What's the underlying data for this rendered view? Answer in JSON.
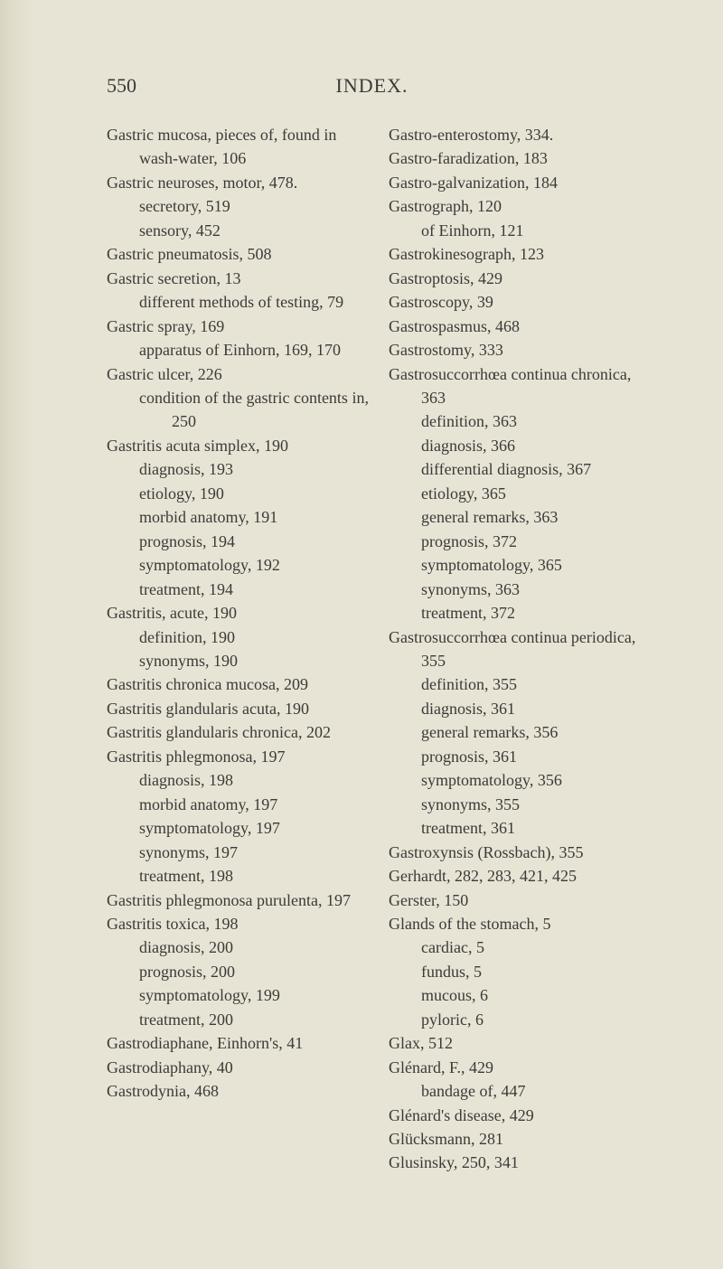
{
  "page_number": "550",
  "header_title": "INDEX.",
  "background_color": "#e8e4d5",
  "text_color": "#3a3a38",
  "font_family": "Times New Roman",
  "body_fontsize": 18,
  "header_fontsize": 22,
  "left_column": [
    {
      "cls": "hang",
      "t": "Gastric mucosa, pieces of, found in wash-water, 106"
    },
    {
      "cls": "hang",
      "t": "Gastric neuroses, motor, 478."
    },
    {
      "cls": "ind1",
      "t": "secretory, 519"
    },
    {
      "cls": "ind1",
      "t": "sensory, 452"
    },
    {
      "cls": "hang",
      "t": "Gastric pneumatosis, 508"
    },
    {
      "cls": "hang",
      "t": "Gastric secretion, 13"
    },
    {
      "cls": "hang1",
      "t": "different methods of testing, 79"
    },
    {
      "cls": "hang",
      "t": "Gastric spray, 169"
    },
    {
      "cls": "hang1",
      "t": "apparatus of Einhorn, 169, 170"
    },
    {
      "cls": "hang",
      "t": "Gastric ulcer, 226"
    },
    {
      "cls": "hang1",
      "t": "condition of the gastric contents in, 250"
    },
    {
      "cls": "hang",
      "t": "Gastritis acuta simplex, 190"
    },
    {
      "cls": "ind1",
      "t": "diagnosis, 193"
    },
    {
      "cls": "ind1",
      "t": "etiology, 190"
    },
    {
      "cls": "ind1",
      "t": "morbid anatomy, 191"
    },
    {
      "cls": "ind1",
      "t": "prognosis, 194"
    },
    {
      "cls": "ind1",
      "t": "symptomatology, 192"
    },
    {
      "cls": "ind1",
      "t": "treatment, 194"
    },
    {
      "cls": "hang",
      "t": "Gastritis, acute, 190"
    },
    {
      "cls": "ind1",
      "t": "definition, 190"
    },
    {
      "cls": "ind1",
      "t": "synonyms, 190"
    },
    {
      "cls": "hang",
      "t": "Gastritis chronica mucosa, 209"
    },
    {
      "cls": "hang",
      "t": "Gastritis glandularis acuta, 190"
    },
    {
      "cls": "hang",
      "t": "Gastritis glandularis chronica, 202"
    },
    {
      "cls": "hang",
      "t": "Gastritis phlegmonosa, 197"
    },
    {
      "cls": "ind1",
      "t": "diagnosis, 198"
    },
    {
      "cls": "ind1",
      "t": "morbid anatomy, 197"
    },
    {
      "cls": "ind1",
      "t": "symptomatology, 197"
    },
    {
      "cls": "ind1",
      "t": "synonyms, 197"
    },
    {
      "cls": "ind1",
      "t": "treatment, 198"
    },
    {
      "cls": "hang",
      "t": "Gastritis phlegmonosa purulenta, 197"
    },
    {
      "cls": "hang",
      "t": "Gastritis toxica, 198"
    },
    {
      "cls": "ind1",
      "t": "diagnosis, 200"
    },
    {
      "cls": "ind1",
      "t": "prognosis, 200"
    },
    {
      "cls": "ind1",
      "t": "symptomatology, 199"
    },
    {
      "cls": "ind1",
      "t": "treatment, 200"
    },
    {
      "cls": "hang",
      "t": "Gastrodiaphane, Einhorn's, 41"
    },
    {
      "cls": "hang",
      "t": "Gastrodiaphany, 40"
    },
    {
      "cls": "hang",
      "t": "Gastrodynia, 468"
    }
  ],
  "right_column": [
    {
      "cls": "hang",
      "t": "Gastro-enterostomy, 334."
    },
    {
      "cls": "hang",
      "t": "Gastro-faradization, 183"
    },
    {
      "cls": "hang",
      "t": "Gastro-galvanization, 184"
    },
    {
      "cls": "hang",
      "t": "Gastrograph, 120"
    },
    {
      "cls": "ind1",
      "t": "of Einhorn, 121"
    },
    {
      "cls": "hang",
      "t": "Gastrokinesograph, 123"
    },
    {
      "cls": "hang",
      "t": "Gastroptosis, 429"
    },
    {
      "cls": "hang",
      "t": "Gastroscopy, 39"
    },
    {
      "cls": "hang",
      "t": "Gastrospasmus, 468"
    },
    {
      "cls": "hang",
      "t": "Gastrostomy, 333"
    },
    {
      "cls": "hang",
      "t": "Gastrosuccorrhœa continua chronica, 363"
    },
    {
      "cls": "ind1",
      "t": "definition, 363"
    },
    {
      "cls": "ind1",
      "t": "diagnosis, 366"
    },
    {
      "cls": "ind1",
      "t": "differential diagnosis, 367"
    },
    {
      "cls": "ind1",
      "t": "etiology, 365"
    },
    {
      "cls": "ind1",
      "t": "general remarks, 363"
    },
    {
      "cls": "ind1",
      "t": "prognosis, 372"
    },
    {
      "cls": "ind1",
      "t": "symptomatology, 365"
    },
    {
      "cls": "ind1",
      "t": "synonyms, 363"
    },
    {
      "cls": "ind1",
      "t": "treatment, 372"
    },
    {
      "cls": "hang",
      "t": "Gastrosuccorrhœa continua periodica, 355"
    },
    {
      "cls": "ind1",
      "t": "definition, 355"
    },
    {
      "cls": "ind1",
      "t": "diagnosis, 361"
    },
    {
      "cls": "ind1",
      "t": "general remarks, 356"
    },
    {
      "cls": "ind1",
      "t": "prognosis, 361"
    },
    {
      "cls": "ind1",
      "t": "symptomatology, 356"
    },
    {
      "cls": "ind1",
      "t": "synonyms, 355"
    },
    {
      "cls": "ind1",
      "t": "treatment, 361"
    },
    {
      "cls": "hang",
      "t": "Gastroxynsis (Rossbach), 355"
    },
    {
      "cls": "hang",
      "t": "Gerhardt, 282, 283, 421, 425"
    },
    {
      "cls": "hang",
      "t": "Gerster, 150"
    },
    {
      "cls": "hang",
      "t": "Glands of the stomach, 5"
    },
    {
      "cls": "ind1",
      "t": "cardiac, 5"
    },
    {
      "cls": "ind1",
      "t": "fundus, 5"
    },
    {
      "cls": "ind1",
      "t": "mucous, 6"
    },
    {
      "cls": "ind1",
      "t": "pyloric, 6"
    },
    {
      "cls": "hang",
      "t": "Glax, 512"
    },
    {
      "cls": "hang",
      "t": "Glénard, F., 429"
    },
    {
      "cls": "ind1",
      "t": "bandage of, 447"
    },
    {
      "cls": "hang",
      "t": "Glénard's disease, 429"
    },
    {
      "cls": "hang",
      "t": "Glücksmann, 281"
    },
    {
      "cls": "hang",
      "t": "Glusinsky, 250, 341"
    }
  ]
}
